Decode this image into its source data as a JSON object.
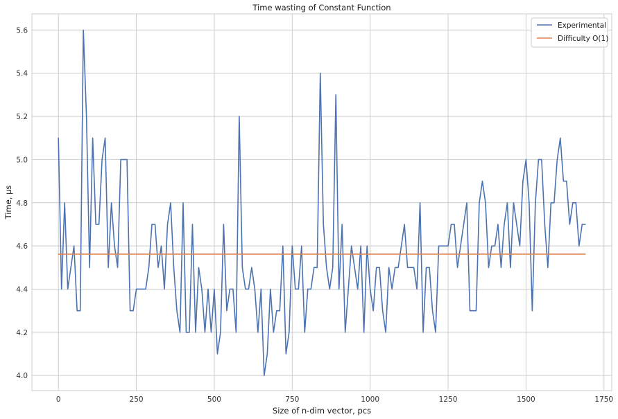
{
  "chart_data": {
    "type": "line",
    "title": "Time wasting of Constant Function",
    "xlabel": "Size of n-dim vector, pcs",
    "ylabel": "Time, µs",
    "xlim": [
      -85,
      1775
    ],
    "ylim": [
      3.93,
      5.675
    ],
    "xticks": [
      0,
      250,
      500,
      750,
      1000,
      1250,
      1500,
      1750
    ],
    "yticks": [
      4.0,
      4.2,
      4.4,
      4.6,
      4.8,
      5.0,
      5.2,
      5.4,
      5.6
    ],
    "ytick_labels": [
      "4.0",
      "4.2",
      "4.4",
      "4.6",
      "4.8",
      "5.0",
      "5.2",
      "5.4",
      "5.6"
    ],
    "grid": true,
    "legend_position": "top-right",
    "series": [
      {
        "name": "Experimental",
        "color": "#4c72b0",
        "x_start": 0,
        "x_step": 10,
        "y": [
          5.1,
          4.4,
          4.8,
          4.4,
          4.5,
          4.6,
          4.3,
          4.3,
          5.6,
          5.2,
          4.5,
          5.1,
          4.7,
          4.7,
          5.0,
          5.1,
          4.5,
          4.8,
          4.6,
          4.5,
          5.0,
          5.0,
          5.0,
          4.3,
          4.3,
          4.4,
          4.4,
          4.4,
          4.4,
          4.5,
          4.7,
          4.7,
          4.5,
          4.6,
          4.4,
          4.7,
          4.8,
          4.5,
          4.3,
          4.2,
          4.8,
          4.2,
          4.2,
          4.7,
          4.2,
          4.5,
          4.4,
          4.2,
          4.4,
          4.2,
          4.4,
          4.1,
          4.2,
          4.7,
          4.3,
          4.4,
          4.4,
          4.2,
          5.2,
          4.5,
          4.4,
          4.4,
          4.5,
          4.4,
          4.2,
          4.4,
          4.0,
          4.1,
          4.4,
          4.2,
          4.3,
          4.3,
          4.6,
          4.1,
          4.2,
          4.6,
          4.4,
          4.4,
          4.6,
          4.2,
          4.4,
          4.4,
          4.5,
          4.5,
          5.4,
          4.7,
          4.5,
          4.4,
          4.5,
          5.3,
          4.4,
          4.7,
          4.2,
          4.4,
          4.6,
          4.5,
          4.4,
          4.6,
          4.2,
          4.6,
          4.4,
          4.3,
          4.5,
          4.5,
          4.3,
          4.2,
          4.5,
          4.4,
          4.5,
          4.5,
          4.6,
          4.7,
          4.5,
          4.5,
          4.5,
          4.4,
          4.8,
          4.2,
          4.5,
          4.5,
          4.3,
          4.2,
          4.6,
          4.6,
          4.6,
          4.6,
          4.7,
          4.7,
          4.5,
          4.6,
          4.7,
          4.8,
          4.3,
          4.3,
          4.3,
          4.8,
          4.9,
          4.8,
          4.5,
          4.6,
          4.6,
          4.7,
          4.5,
          4.7,
          4.8,
          4.5,
          4.8,
          4.7,
          4.6,
          4.9,
          5.0,
          4.8,
          4.3,
          4.8,
          5.0,
          5.0,
          4.7,
          4.5,
          4.8,
          4.8,
          5.0,
          5.1,
          4.9,
          4.9,
          4.7,
          4.8,
          4.8,
          4.6,
          4.7,
          4.7
        ]
      },
      {
        "name": "Difficulty O(1)",
        "color": "#dd8452",
        "x": [
          0,
          1690
        ],
        "y": [
          4.562,
          4.562
        ]
      }
    ]
  }
}
